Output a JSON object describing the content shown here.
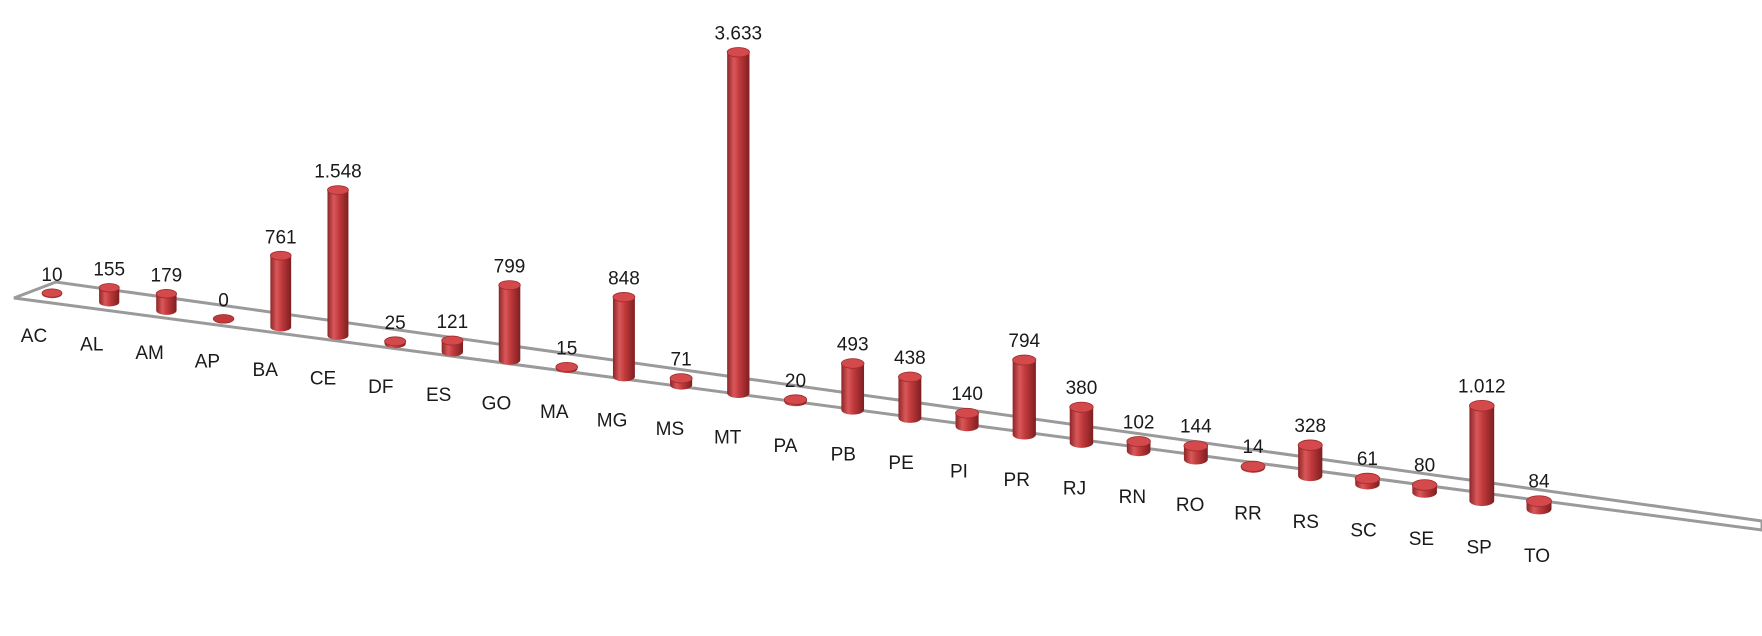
{
  "chart_data": {
    "type": "bar",
    "style": "3d-cylinder",
    "title": "",
    "xlabel": "",
    "ylabel": "",
    "grid": false,
    "legend": "none",
    "bar_color": "#c0393b",
    "categories": [
      "AC",
      "AL",
      "AM",
      "AP",
      "BA",
      "CE",
      "DF",
      "ES",
      "GO",
      "MA",
      "MG",
      "MS",
      "MT",
      "PA",
      "PB",
      "PE",
      "PI",
      "PR",
      "RJ",
      "RN",
      "RO",
      "RR",
      "RS",
      "SC",
      "SE",
      "SP",
      "TO"
    ],
    "values": [
      10,
      155,
      179,
      0,
      761,
      1548,
      25,
      121,
      799,
      15,
      848,
      71,
      3633,
      20,
      493,
      438,
      140,
      794,
      380,
      102,
      144,
      14,
      328,
      61,
      80,
      1012,
      84
    ],
    "value_labels": [
      "10",
      "155",
      "179",
      "0",
      "761",
      "1.548",
      "25",
      "121",
      "799",
      "15",
      "848",
      "71",
      "3.633",
      "20",
      "493",
      "438",
      "140",
      "794",
      "380",
      "102",
      "144",
      "14",
      "328",
      "61",
      "80",
      "1.012",
      "84"
    ]
  }
}
